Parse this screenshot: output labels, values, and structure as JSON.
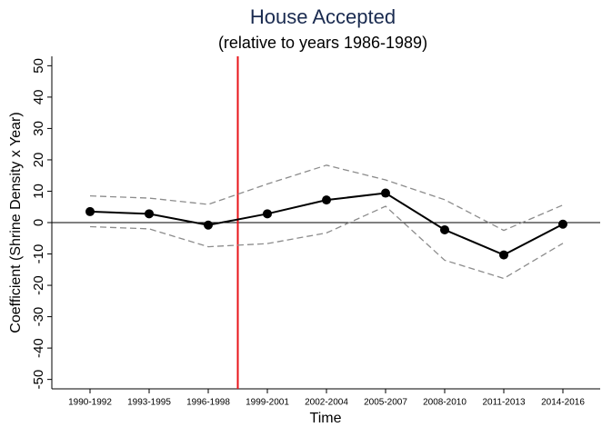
{
  "chart_data": {
    "type": "line",
    "title": "House Accepted",
    "subtitle": "(relative to years 1986-1989)",
    "x_label": "Time",
    "y_label": "Coefficient (Shrine Density x Year)",
    "categories": [
      "1990-1992",
      "1993-1995",
      "1996-1998",
      "1999-2001",
      "2002-2004",
      "2005-2007",
      "2008-2010",
      "2011-2013",
      "2014-2016"
    ],
    "series": [
      {
        "color": "#000000",
        "dashed": false,
        "markers": true,
        "values": [
          3.5,
          2.8,
          -0.8,
          2.8,
          7.2,
          9.4,
          -2.3,
          -10.3,
          -0.5
        ]
      },
      {
        "color": "#8c8c8c",
        "dashed": true,
        "markers": false,
        "values": [
          8.5,
          7.8,
          5.8,
          12.3,
          18.3,
          13.6,
          7.3,
          -2.5,
          5.6
        ]
      },
      {
        "color": "#8c8c8c",
        "dashed": true,
        "markers": false,
        "values": [
          -1.3,
          -2.0,
          -7.7,
          -6.7,
          -3.3,
          5.2,
          -12.0,
          -17.8,
          -6.6
        ]
      }
    ],
    "reference_line": {
      "x": 2.5,
      "color": "#e8141a"
    },
    "zero_line": 0,
    "ylim": [
      -53,
      53
    ],
    "yticks": [
      -50,
      -40,
      -30,
      -20,
      -10,
      0,
      10,
      20,
      30,
      40,
      50
    ]
  }
}
